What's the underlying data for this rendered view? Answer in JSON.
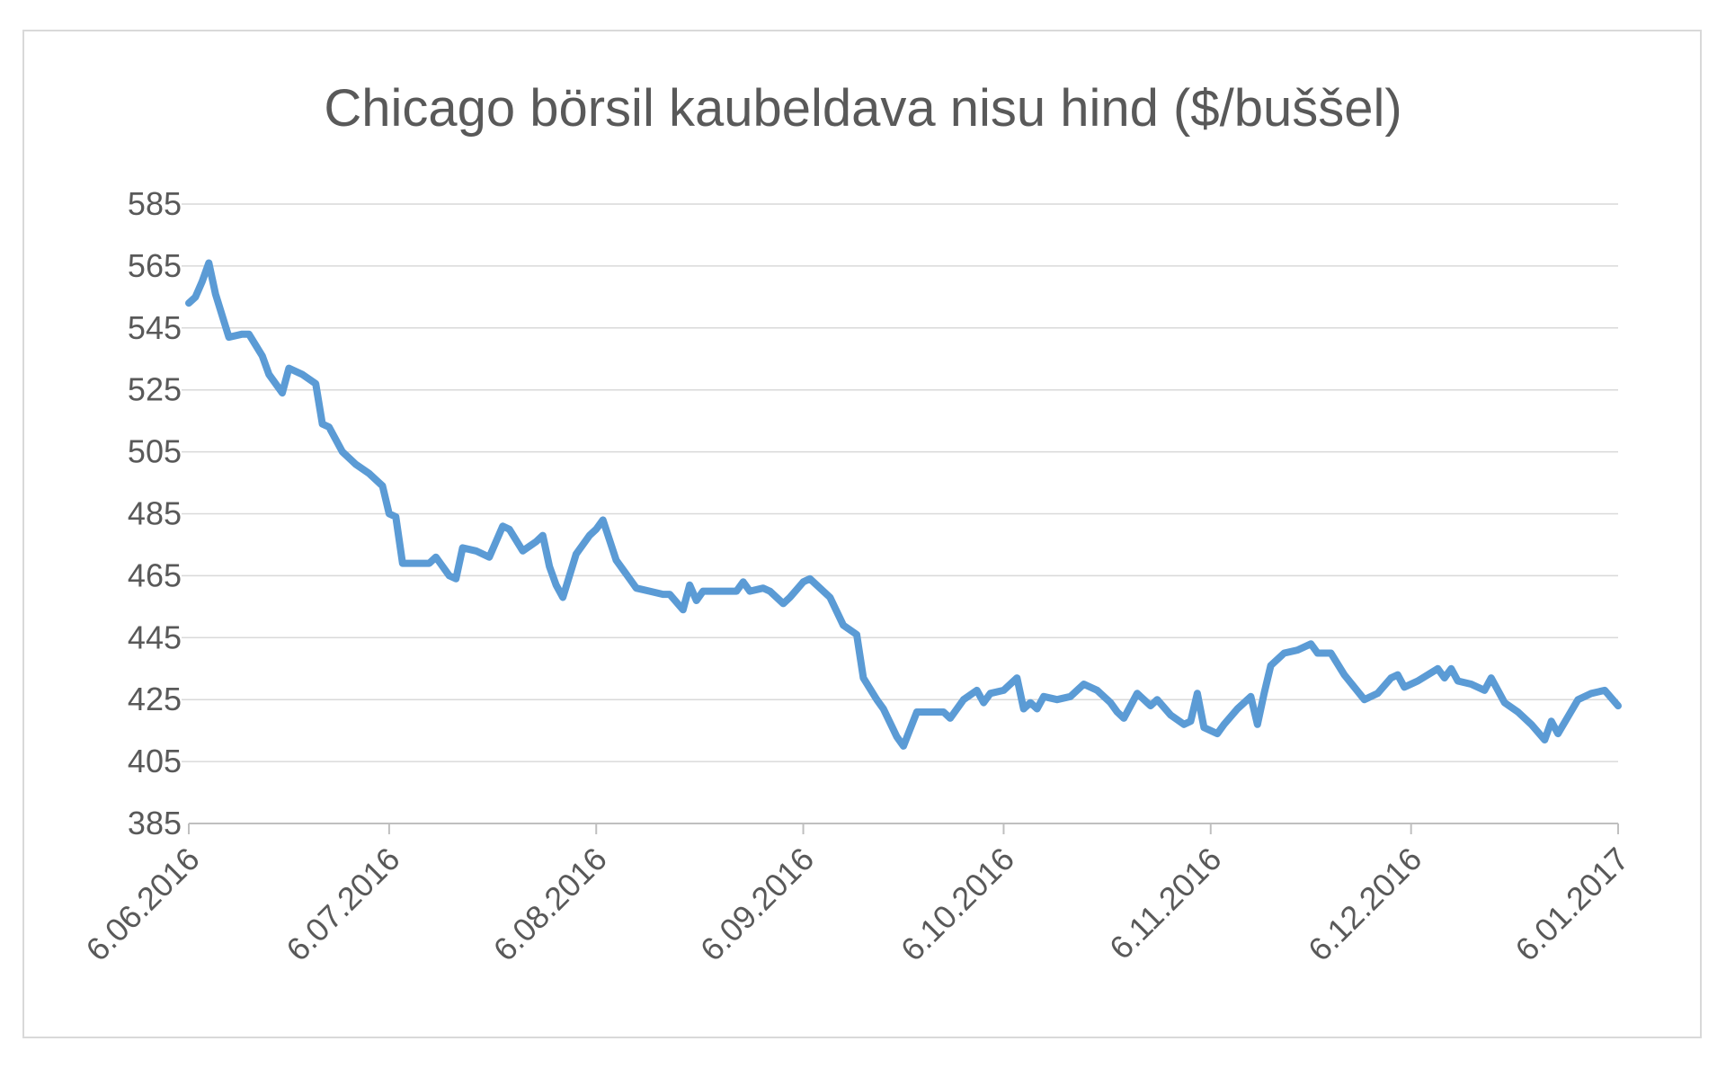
{
  "chart_data": {
    "type": "line",
    "title": "Chicago börsil kaubeldava nisu hind ($/buššel)",
    "xlabel": "",
    "ylabel": "",
    "ylim": [
      385,
      585
    ],
    "yticks": [
      585,
      565,
      545,
      525,
      505,
      485,
      465,
      445,
      425,
      405,
      385
    ],
    "xlim": [
      "2016-06-06",
      "2017-01-06"
    ],
    "xtick_labels": [
      "6.06.2016",
      "6.07.2016",
      "6.08.2016",
      "6.09.2016",
      "6.10.2016",
      "6.11.2016",
      "6.12.2016",
      "6.01.2017"
    ],
    "xtick_dates": [
      "2016-06-06",
      "2016-07-06",
      "2016-08-06",
      "2016-09-06",
      "2016-10-06",
      "2016-11-06",
      "2016-12-06",
      "2017-01-06"
    ],
    "grid": true,
    "legend": "none",
    "color": "#5b9bd5",
    "series": [
      {
        "points": [
          [
            "2016-06-06",
            553
          ],
          [
            "2016-06-07",
            555
          ],
          [
            "2016-06-08",
            560
          ],
          [
            "2016-06-09",
            566
          ],
          [
            "2016-06-10",
            556
          ],
          [
            "2016-06-12",
            542
          ],
          [
            "2016-06-14",
            543
          ],
          [
            "2016-06-15",
            543
          ],
          [
            "2016-06-17",
            536
          ],
          [
            "2016-06-18",
            530
          ],
          [
            "2016-06-20",
            524
          ],
          [
            "2016-06-21",
            532
          ],
          [
            "2016-06-23",
            530
          ],
          [
            "2016-06-25",
            527
          ],
          [
            "2016-06-26",
            514
          ],
          [
            "2016-06-27",
            513
          ],
          [
            "2016-06-29",
            505
          ],
          [
            "2016-07-01",
            501
          ],
          [
            "2016-07-03",
            498
          ],
          [
            "2016-07-04",
            496
          ],
          [
            "2016-07-05",
            494
          ],
          [
            "2016-07-06",
            485
          ],
          [
            "2016-07-07",
            484
          ],
          [
            "2016-07-08",
            469
          ],
          [
            "2016-07-10",
            469
          ],
          [
            "2016-07-12",
            469
          ],
          [
            "2016-07-13",
            471
          ],
          [
            "2016-07-15",
            465
          ],
          [
            "2016-07-16",
            464
          ],
          [
            "2016-07-17",
            474
          ],
          [
            "2016-07-19",
            473
          ],
          [
            "2016-07-21",
            471
          ],
          [
            "2016-07-23",
            481
          ],
          [
            "2016-07-24",
            480
          ],
          [
            "2016-07-26",
            473
          ],
          [
            "2016-07-28",
            476
          ],
          [
            "2016-07-29",
            478
          ],
          [
            "2016-07-30",
            468
          ],
          [
            "2016-07-31",
            462
          ],
          [
            "2016-08-01",
            458
          ],
          [
            "2016-08-03",
            472
          ],
          [
            "2016-08-05",
            478
          ],
          [
            "2016-08-06",
            480
          ],
          [
            "2016-08-07",
            483
          ],
          [
            "2016-08-09",
            470
          ],
          [
            "2016-08-11",
            464
          ],
          [
            "2016-08-12",
            461
          ],
          [
            "2016-08-14",
            460
          ],
          [
            "2016-08-16",
            459
          ],
          [
            "2016-08-17",
            459
          ],
          [
            "2016-08-19",
            454
          ],
          [
            "2016-08-20",
            462
          ],
          [
            "2016-08-21",
            457
          ],
          [
            "2016-08-22",
            460
          ],
          [
            "2016-08-24",
            460
          ],
          [
            "2016-08-26",
            460
          ],
          [
            "2016-08-27",
            460
          ],
          [
            "2016-08-28",
            463
          ],
          [
            "2016-08-29",
            460
          ],
          [
            "2016-08-31",
            461
          ],
          [
            "2016-09-01",
            460
          ],
          [
            "2016-09-03",
            456
          ],
          [
            "2016-09-04",
            458
          ],
          [
            "2016-09-06",
            463
          ],
          [
            "2016-09-07",
            464
          ],
          [
            "2016-09-08",
            462
          ],
          [
            "2016-09-10",
            458
          ],
          [
            "2016-09-12",
            449
          ],
          [
            "2016-09-14",
            446
          ],
          [
            "2016-09-15",
            432
          ],
          [
            "2016-09-17",
            425
          ],
          [
            "2016-09-18",
            422
          ],
          [
            "2016-09-20",
            413
          ],
          [
            "2016-09-21",
            410
          ],
          [
            "2016-09-23",
            421
          ],
          [
            "2016-09-25",
            421
          ],
          [
            "2016-09-26",
            421
          ],
          [
            "2016-09-27",
            421
          ],
          [
            "2016-09-28",
            419
          ],
          [
            "2016-09-30",
            425
          ],
          [
            "2016-10-02",
            428
          ],
          [
            "2016-10-03",
            424
          ],
          [
            "2016-10-04",
            427
          ],
          [
            "2016-10-06",
            428
          ],
          [
            "2016-10-08",
            432
          ],
          [
            "2016-10-09",
            422
          ],
          [
            "2016-10-10",
            424
          ],
          [
            "2016-10-11",
            422
          ],
          [
            "2016-10-12",
            426
          ],
          [
            "2016-10-14",
            425
          ],
          [
            "2016-10-16",
            426
          ],
          [
            "2016-10-18",
            430
          ],
          [
            "2016-10-20",
            428
          ],
          [
            "2016-10-22",
            424
          ],
          [
            "2016-10-23",
            421
          ],
          [
            "2016-10-24",
            419
          ],
          [
            "2016-10-26",
            427
          ],
          [
            "2016-10-28",
            423
          ],
          [
            "2016-10-29",
            425
          ],
          [
            "2016-10-31",
            420
          ],
          [
            "2016-11-02",
            417
          ],
          [
            "2016-11-03",
            418
          ],
          [
            "2016-11-04",
            427
          ],
          [
            "2016-11-05",
            416
          ],
          [
            "2016-11-07",
            414
          ],
          [
            "2016-11-08",
            417
          ],
          [
            "2016-11-10",
            422
          ],
          [
            "2016-11-12",
            426
          ],
          [
            "2016-11-13",
            417
          ],
          [
            "2016-11-14",
            427
          ],
          [
            "2016-11-15",
            436
          ],
          [
            "2016-11-17",
            440
          ],
          [
            "2016-11-19",
            441
          ],
          [
            "2016-11-21",
            443
          ],
          [
            "2016-11-22",
            440
          ],
          [
            "2016-11-24",
            440
          ],
          [
            "2016-11-26",
            433
          ],
          [
            "2016-11-29",
            425
          ],
          [
            "2016-12-01",
            427
          ],
          [
            "2016-12-03",
            432
          ],
          [
            "2016-12-04",
            433
          ],
          [
            "2016-12-05",
            429
          ],
          [
            "2016-12-07",
            431
          ],
          [
            "2016-12-10",
            435
          ],
          [
            "2016-12-11",
            432
          ],
          [
            "2016-12-12",
            435
          ],
          [
            "2016-12-13",
            431
          ],
          [
            "2016-12-15",
            430
          ],
          [
            "2016-12-17",
            428
          ],
          [
            "2016-12-18",
            432
          ],
          [
            "2016-12-20",
            424
          ],
          [
            "2016-12-22",
            421
          ],
          [
            "2016-12-24",
            417
          ],
          [
            "2016-12-26",
            412
          ],
          [
            "2016-12-27",
            418
          ],
          [
            "2016-12-28",
            414
          ],
          [
            "2016-12-31",
            425
          ],
          [
            "2017-01-02",
            427
          ],
          [
            "2017-01-04",
            428
          ],
          [
            "2017-01-06",
            423
          ]
        ]
      }
    ]
  }
}
